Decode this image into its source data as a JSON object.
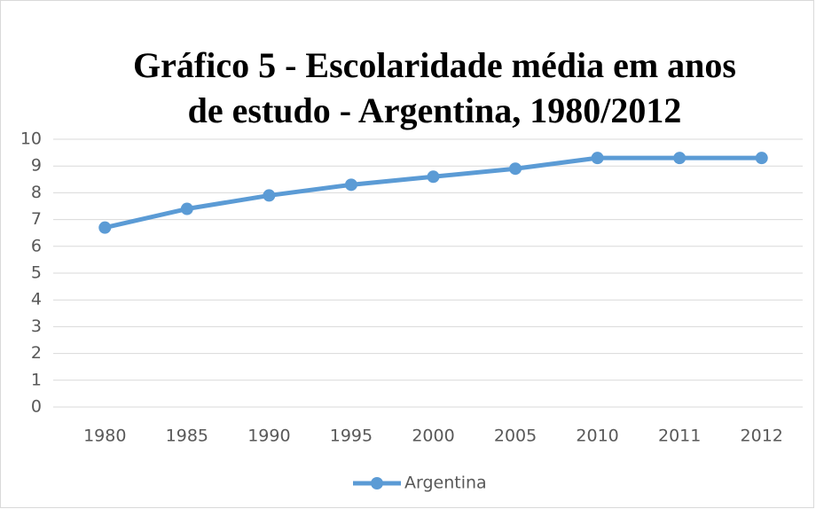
{
  "chart_data": {
    "type": "line",
    "title": [
      "Gráfico 5 - Escolaridade média em anos",
      "de estudo - Argentina, 1980/2012"
    ],
    "categories": [
      "1980",
      "1985",
      "1990",
      "1995",
      "2000",
      "2005",
      "2010",
      "2011",
      "2012"
    ],
    "series": [
      {
        "name": "Argentina",
        "color": "#5b9bd5",
        "values": [
          6.7,
          7.4,
          7.9,
          8.3,
          8.6,
          8.9,
          9.3,
          9.3,
          9.3
        ]
      }
    ],
    "ylim": [
      0,
      10
    ],
    "yticks": [
      0,
      1,
      2,
      3,
      4,
      5,
      6,
      7,
      8,
      9,
      10
    ],
    "grid": true,
    "legend": "bottom"
  }
}
